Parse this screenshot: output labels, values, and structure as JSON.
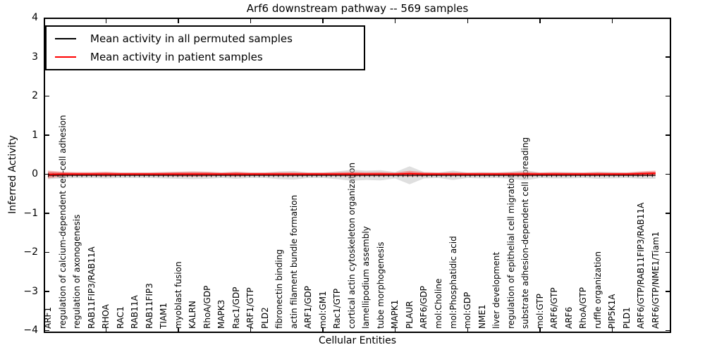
{
  "chart_data": {
    "type": "line",
    "title": "Arf6 downstream pathway -- 569 samples",
    "xlabel": "Cellular Entities",
    "ylabel": "Inferred Activity",
    "ylim": [
      -4,
      4
    ],
    "yticks": [
      4,
      3,
      2,
      1,
      0,
      -1,
      -2,
      -3,
      -4
    ],
    "xtick_positions": [
      5,
      10,
      15,
      20,
      25,
      30,
      35,
      40
    ],
    "grid": false,
    "legend_position": "upper left",
    "categories": [
      "ARF1",
      "regulation of calcium-dependent cell-cell adhesion",
      "regulation of axonogenesis",
      "RAB11FIP3/RAB11A",
      "RHOA",
      "RAC1",
      "RAB11A",
      "RAB11FIP3",
      "TIAM1",
      "myoblast fusion",
      "KALRN",
      "RhoA/GDP",
      "MAPK3",
      "Rac1/GDP",
      "ARF1/GTP",
      "PLD2",
      "fibronectin binding",
      "actin filament bundle formation",
      "ARF1/GDP",
      "mol:GM1",
      "Rac1/GTP",
      "cortical actin cytoskeleton organization",
      "lamellipodium assembly",
      "tube morphogenesis",
      "MAPK1",
      "PLAUR",
      "ARF6/GDP",
      "mol:Choline",
      "mol:Phosphatidic acid",
      "mol:GDP",
      "NME1",
      "liver development",
      "regulation of epithelial cell migration",
      "substrate adhesion-dependent cell spreading",
      "mol:GTP",
      "ARF6/GTP",
      "ARF6",
      "RhoA/GTP",
      "ruffle organization",
      "PIP5K1A",
      "PLD1",
      "ARF6/GTP/RAB11FIP3/RAB11A",
      "ARF6/GTP/NME1/Tiam1"
    ],
    "series": [
      {
        "name": "Mean activity in all permuted samples",
        "color": "#000000",
        "band_color": "#c0c0c0",
        "values": [
          0,
          0,
          0,
          0,
          0,
          0,
          0,
          0,
          0,
          0,
          0,
          0,
          0,
          0,
          0,
          0,
          0,
          0,
          0,
          0,
          0,
          0,
          0,
          0,
          0,
          0,
          0,
          0,
          0,
          0,
          0,
          0,
          0,
          0,
          0,
          0,
          0,
          0,
          0,
          0,
          0,
          0,
          0
        ],
        "band_halfwidth": [
          0.1,
          0.08,
          0.07,
          0.07,
          0.08,
          0.07,
          0.07,
          0.07,
          0.08,
          0.09,
          0.1,
          0.09,
          0.07,
          0.09,
          0.07,
          0.07,
          0.1,
          0.11,
          0.07,
          0.07,
          0.1,
          0.14,
          0.12,
          0.13,
          0.08,
          0.23,
          0.08,
          0.07,
          0.12,
          0.07,
          0.08,
          0.07,
          0.09,
          0.13,
          0.07,
          0.08,
          0.08,
          0.07,
          0.09,
          0.08,
          0.07,
          0.09,
          0.09
        ]
      },
      {
        "name": "Mean activity in patient samples",
        "color": "#ff0000",
        "band_color": "#ff0000",
        "values": [
          0.02,
          0.03,
          0.03,
          0.03,
          0.03,
          0.03,
          0.03,
          0.03,
          0.03,
          0.03,
          0.03,
          0.03,
          0.03,
          0.03,
          0.03,
          0.03,
          0.03,
          0.03,
          0.03,
          0.03,
          0.03,
          0.03,
          0.03,
          0.03,
          0.03,
          0.04,
          0.03,
          0.03,
          0.03,
          0.03,
          0.03,
          0.03,
          0.03,
          0.03,
          0.03,
          0.03,
          0.03,
          0.03,
          0.03,
          0.03,
          0.03,
          0.04,
          0.05
        ],
        "band_halfwidth": [
          0.1,
          0.06,
          0.05,
          0.05,
          0.06,
          0.045,
          0.045,
          0.045,
          0.05,
          0.06,
          0.065,
          0.06,
          0.045,
          0.06,
          0.045,
          0.045,
          0.05,
          0.05,
          0.045,
          0.045,
          0.05,
          0.06,
          0.05,
          0.055,
          0.045,
          0.075,
          0.05,
          0.045,
          0.05,
          0.045,
          0.045,
          0.045,
          0.05,
          0.06,
          0.045,
          0.05,
          0.045,
          0.045,
          0.05,
          0.045,
          0.045,
          0.06,
          0.07
        ]
      }
    ]
  }
}
